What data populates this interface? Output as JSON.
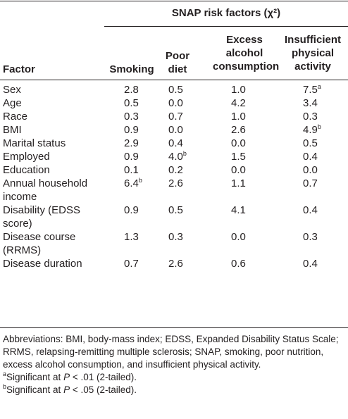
{
  "table": {
    "span_header": "SNAP risk factors (χ²)",
    "columns": {
      "factor": "Factor",
      "smoking": "Smoking",
      "poor_diet": [
        "Poor",
        "diet"
      ],
      "excess_alcohol": [
        "Excess",
        "alcohol",
        "consumption"
      ],
      "insufficient_activity": [
        "Insufficient",
        "physical",
        "activity"
      ]
    },
    "rows": [
      {
        "factor": [
          "Sex"
        ],
        "smoking": "2.8",
        "smoking_sup": "",
        "poor_diet": "0.5",
        "poor_diet_sup": "",
        "excess_alcohol": "1.0",
        "excess_alcohol_sup": "",
        "insufficient_activity": "7.5",
        "insufficient_activity_sup": "a"
      },
      {
        "factor": [
          "Age"
        ],
        "smoking": "0.5",
        "smoking_sup": "",
        "poor_diet": "0.0",
        "poor_diet_sup": "",
        "excess_alcohol": "4.2",
        "excess_alcohol_sup": "",
        "insufficient_activity": "3.4",
        "insufficient_activity_sup": ""
      },
      {
        "factor": [
          "Race"
        ],
        "smoking": "0.3",
        "smoking_sup": "",
        "poor_diet": "0.7",
        "poor_diet_sup": "",
        "excess_alcohol": "1.0",
        "excess_alcohol_sup": "",
        "insufficient_activity": "0.3",
        "insufficient_activity_sup": ""
      },
      {
        "factor": [
          "BMI"
        ],
        "smoking": "0.9",
        "smoking_sup": "",
        "poor_diet": "0.0",
        "poor_diet_sup": "",
        "excess_alcohol": "2.6",
        "excess_alcohol_sup": "",
        "insufficient_activity": "4.9",
        "insufficient_activity_sup": "b"
      },
      {
        "factor": [
          "Marital status"
        ],
        "smoking": "2.9",
        "smoking_sup": "",
        "poor_diet": "0.4",
        "poor_diet_sup": "",
        "excess_alcohol": "0.0",
        "excess_alcohol_sup": "",
        "insufficient_activity": "0.5",
        "insufficient_activity_sup": ""
      },
      {
        "factor": [
          "Employed"
        ],
        "smoking": "0.9",
        "smoking_sup": "",
        "poor_diet": "4.0",
        "poor_diet_sup": "b",
        "excess_alcohol": "1.5",
        "excess_alcohol_sup": "",
        "insufficient_activity": "0.4",
        "insufficient_activity_sup": ""
      },
      {
        "factor": [
          "Education"
        ],
        "smoking": "0.1",
        "smoking_sup": "",
        "poor_diet": "0.2",
        "poor_diet_sup": "",
        "excess_alcohol": "0.0",
        "excess_alcohol_sup": "",
        "insufficient_activity": "0.0",
        "insufficient_activity_sup": ""
      },
      {
        "factor": [
          "Annual household",
          "income"
        ],
        "smoking": "6.4",
        "smoking_sup": "b",
        "poor_diet": "2.6",
        "poor_diet_sup": "",
        "excess_alcohol": "1.1",
        "excess_alcohol_sup": "",
        "insufficient_activity": "0.7",
        "insufficient_activity_sup": ""
      },
      {
        "factor": [
          "Disability (EDSS",
          "score)"
        ],
        "smoking": "0.9",
        "smoking_sup": "",
        "poor_diet": "0.5",
        "poor_diet_sup": "",
        "excess_alcohol": "4.1",
        "excess_alcohol_sup": "",
        "insufficient_activity": "0.4",
        "insufficient_activity_sup": ""
      },
      {
        "factor": [
          "Disease course",
          "(RRMS)"
        ],
        "smoking": "1.3",
        "smoking_sup": "",
        "poor_diet": "0.3",
        "poor_diet_sup": "",
        "excess_alcohol": "0.0",
        "excess_alcohol_sup": "",
        "insufficient_activity": "0.3",
        "insufficient_activity_sup": ""
      },
      {
        "factor": [
          "Disease duration"
        ],
        "smoking": "0.7",
        "smoking_sup": "",
        "poor_diet": "2.6",
        "poor_diet_sup": "",
        "excess_alcohol": "0.6",
        "excess_alcohol_sup": "",
        "insufficient_activity": "0.4",
        "insufficient_activity_sup": ""
      }
    ]
  },
  "notes": {
    "abbreviations": "Abbreviations: BMI, body-mass index; EDSS, Expanded Disability Status Scale; RRMS, relapsing-remitting multiple sclerosis; SNAP, smoking, poor nutrition, excess alcohol consumption, and insufficient physical activity.",
    "footnote_a": {
      "marker": "a",
      "text_before": "Significant at ",
      "italic": "P",
      "text_after": " < .01 (2-tailed)."
    },
    "footnote_b": {
      "marker": "b",
      "text_before": "Significant at ",
      "italic": "P",
      "text_after": " < .05 (2-tailed)."
    }
  }
}
